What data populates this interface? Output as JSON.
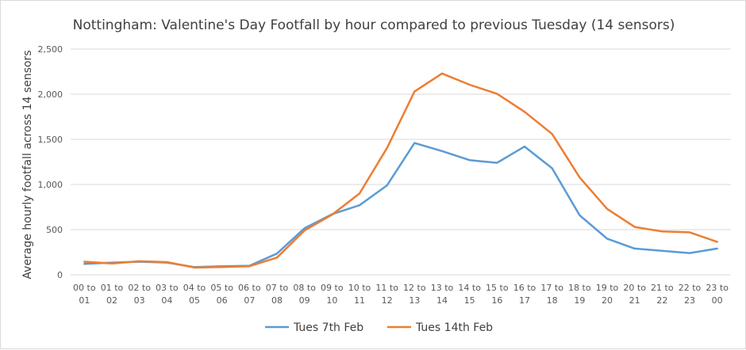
{
  "chart_data": {
    "type": "line",
    "title": "Nottingham: Valentine's Day Footfall by hour compared to previous Tuesday (14 sensors)",
    "xlabel": "",
    "ylabel": "Average hourly footfall across 14 sensors",
    "ylim": [
      0,
      2500
    ],
    "yticks": [
      "0",
      "500",
      "1,000",
      "1,500",
      "2,000",
      "2,500"
    ],
    "ytick_values": [
      0,
      500,
      1000,
      1500,
      2000,
      2500
    ],
    "grid": true,
    "legend_position": "bottom",
    "categories": [
      [
        "00 to",
        "01"
      ],
      [
        "01 to",
        "02"
      ],
      [
        "02 to",
        "03"
      ],
      [
        "03 to",
        "04"
      ],
      [
        "04 to",
        "05"
      ],
      [
        "05 to",
        "06"
      ],
      [
        "06 to",
        "07"
      ],
      [
        "07 to",
        "08"
      ],
      [
        "08 to",
        "09"
      ],
      [
        "09 to",
        "10"
      ],
      [
        "10 to",
        "11"
      ],
      [
        "11 to",
        "12"
      ],
      [
        "12 to",
        "13"
      ],
      [
        "13 to",
        "14"
      ],
      [
        "14 to",
        "15"
      ],
      [
        "15 to",
        "16"
      ],
      [
        "16 to",
        "17"
      ],
      [
        "17 to",
        "18"
      ],
      [
        "18 to",
        "19"
      ],
      [
        "19 to",
        "20"
      ],
      [
        "20 to",
        "21"
      ],
      [
        "21 to",
        "22"
      ],
      [
        "22 to",
        "23"
      ],
      [
        "23 to",
        "00"
      ]
    ],
    "series": [
      {
        "name": "Tues 7th Feb",
        "color": "#5b9bd5",
        "values": [
          120,
          135,
          145,
          135,
          85,
          95,
          100,
          235,
          515,
          670,
          770,
          990,
          1460,
          1370,
          1270,
          1240,
          1420,
          1180,
          660,
          400,
          290,
          265,
          240,
          290
        ]
      },
      {
        "name": "Tues 14th Feb",
        "color": "#ed7d31",
        "values": [
          145,
          125,
          150,
          140,
          80,
          85,
          95,
          190,
          490,
          665,
          900,
          1405,
          2030,
          2230,
          2105,
          2005,
          1805,
          1560,
          1080,
          730,
          530,
          480,
          470,
          365
        ]
      }
    ]
  }
}
